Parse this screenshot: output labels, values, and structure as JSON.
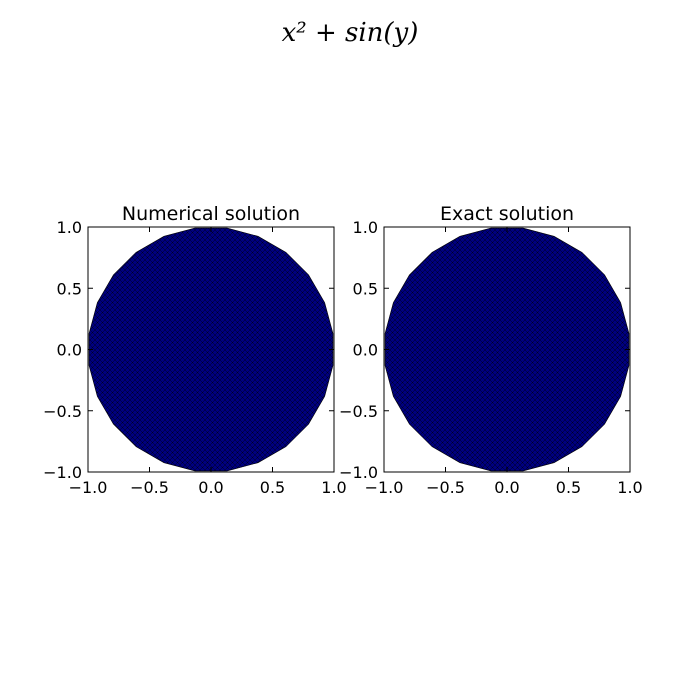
{
  "figure": {
    "suptitle": "x² + sin(y)"
  },
  "chart_data": [
    {
      "type": "tripcolor",
      "title": "Numerical solution",
      "xlabel": "",
      "ylabel": "",
      "xlim": [
        -1.0,
        1.0
      ],
      "ylim": [
        -1.0,
        1.0
      ],
      "xticks": [
        -1.0,
        -0.5,
        0.0,
        0.5,
        1.0
      ],
      "yticks": [
        -1.0,
        -0.5,
        0.0,
        0.5,
        1.0
      ],
      "xtick_labels": [
        "−1.0",
        "−0.5",
        "0.0",
        "0.5",
        "1.0"
      ],
      "ytick_labels": [
        "−1.0",
        "−0.5",
        "0.0",
        "0.5",
        "1.0"
      ],
      "domain": "unit disk",
      "boundary_vertices": 24,
      "fill_color": "#00007f",
      "edge_color": "#000000",
      "grid": false
    },
    {
      "type": "tripcolor",
      "title": "Exact solution",
      "xlabel": "",
      "ylabel": "",
      "xlim": [
        -1.0,
        1.0
      ],
      "ylim": [
        -1.0,
        1.0
      ],
      "xticks": [
        -1.0,
        -0.5,
        0.0,
        0.5,
        1.0
      ],
      "yticks": [
        -1.0,
        -0.5,
        0.0,
        0.5,
        1.0
      ],
      "xtick_labels": [
        "−1.0",
        "−0.5",
        "0.0",
        "0.5",
        "1.0"
      ],
      "ytick_labels": [
        "−1.0",
        "−0.5",
        "0.0",
        "0.5",
        "1.0"
      ],
      "domain": "unit disk",
      "boundary_vertices": 24,
      "fill_color": "#00007f",
      "edge_color": "#000000",
      "grid": false
    }
  ]
}
